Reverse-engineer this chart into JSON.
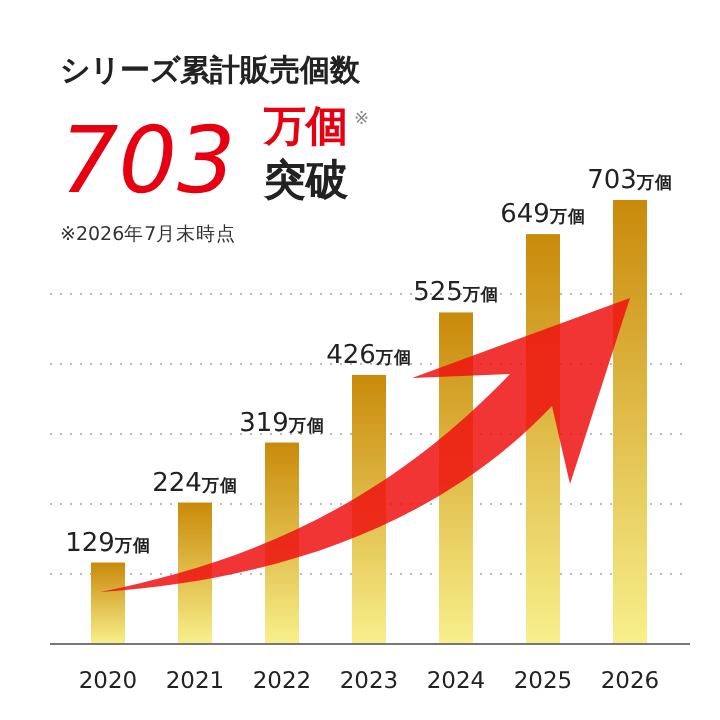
{
  "chart_data": {
    "type": "bar",
    "title": "シリーズ累計販売個数",
    "annotations": [
      "703",
      "万個",
      "※",
      "突破",
      "※2026年7月末時点"
    ],
    "categories": [
      "2020",
      "2021",
      "2022",
      "2023",
      "2024",
      "2025",
      "2026"
    ],
    "values": [
      129,
      224,
      319,
      426,
      525,
      649,
      703
    ],
    "value_labels": [
      "129万個",
      "224万個",
      "319万個",
      "426万個",
      "525万個",
      "649万個",
      "703万個"
    ],
    "color": "#c98a0a",
    "grid": "y"
  }
}
